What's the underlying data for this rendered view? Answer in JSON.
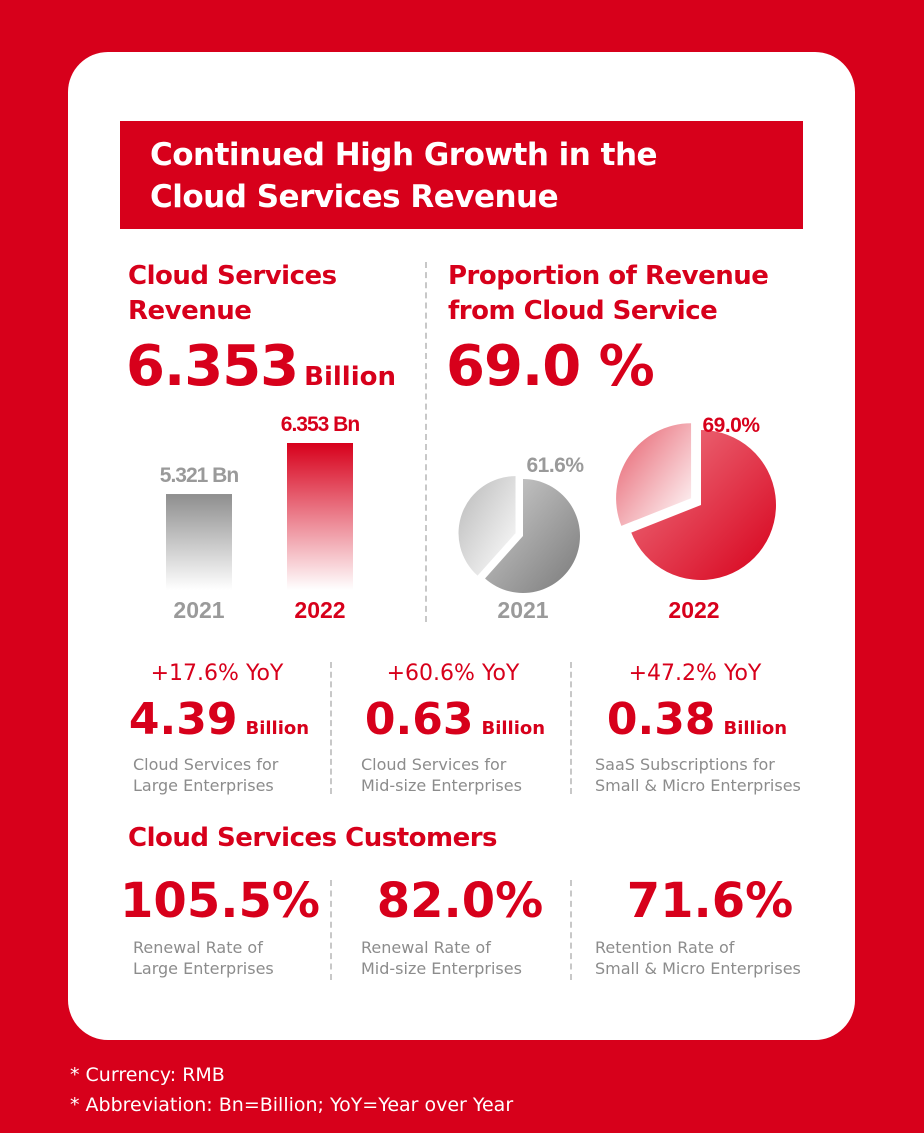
{
  "title_line1": "Continued High Growth in the",
  "title_line2": "Cloud Services Revenue",
  "revenue": {
    "heading_line1": "Cloud Services",
    "heading_line2": "Revenue",
    "value": "6.353",
    "unit": "Billion"
  },
  "proportion": {
    "heading_line1": "Proportion of Revenue",
    "heading_line2": "from Cloud Service",
    "value": "69.0 %"
  },
  "colors": {
    "brand_red": "#d7001b",
    "grey": "#9a9a9a"
  },
  "chart_data": [
    {
      "type": "bar",
      "categories": [
        "2021",
        "2022"
      ],
      "values": [
        5.321,
        6.353
      ],
      "data_labels": [
        "5.321 Bn",
        "6.353 Bn"
      ],
      "unit": "Bn"
    },
    {
      "type": "pie",
      "categories": [
        "2021",
        "2022"
      ],
      "values": [
        61.6,
        69.0
      ],
      "data_labels": [
        "61.6%",
        "69.0%"
      ],
      "unit": "%"
    }
  ],
  "segments": [
    {
      "yoy": "+17.6% YoY",
      "value": "4.39",
      "unit": "Billion",
      "desc_line1": "Cloud Services for",
      "desc_line2": "Large Enterprises"
    },
    {
      "yoy": "+60.6% YoY",
      "value": "0.63",
      "unit": "Billion",
      "desc_line1": "Cloud Services for",
      "desc_line2": "Mid-size Enterprises"
    },
    {
      "yoy": "+47.2% YoY",
      "value": "0.38",
      "unit": "Billion",
      "desc_line1": "SaaS Subscriptions for",
      "desc_line2": "Small & Micro Enterprises"
    }
  ],
  "customers": {
    "heading": "Cloud Services Customers",
    "items": [
      {
        "value": "105.5%",
        "desc_line1": "Renewal Rate of",
        "desc_line2": "Large Enterprises"
      },
      {
        "value": "82.0%",
        "desc_line1": "Renewal Rate of",
        "desc_line2": "Mid-size Enterprises"
      },
      {
        "value": "71.6%",
        "desc_line1": "Retention Rate of",
        "desc_line2": "Small & Micro Enterprises"
      }
    ]
  },
  "footnotes": [
    "* Currency: RMB",
    "* Abbreviation: Bn=Billion; YoY=Year over Year"
  ]
}
